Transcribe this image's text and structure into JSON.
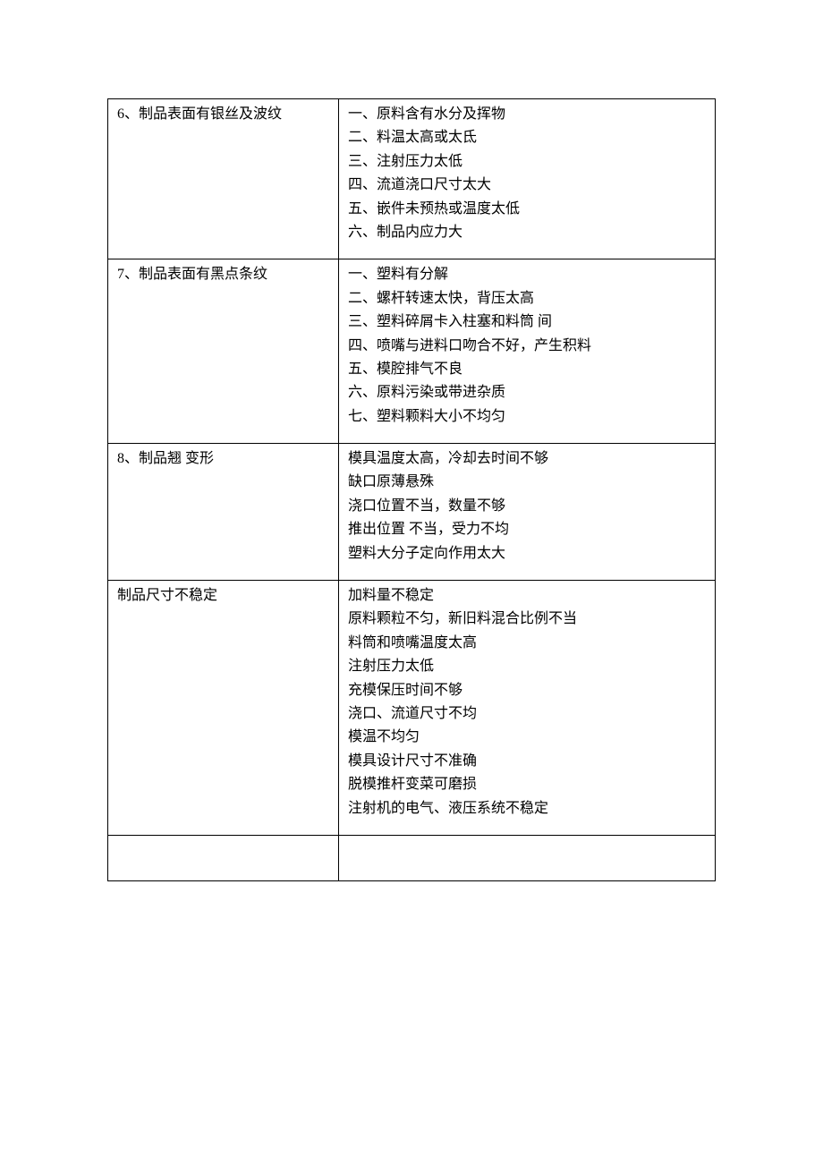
{
  "table": {
    "rows": [
      {
        "left": "6、制品表面有银丝及波纹",
        "right": "一、原料含有水分及挥物\n二、料温太高或太氐\n三、注射压力太低\n四、流道浇口尺寸太大\n五、嵌件未预热或温度太低\n六、制品内应力大"
      },
      {
        "left": "7、制品表面有黑点条纹",
        "right": "一、塑料有分解\n二、螺杆转速太快，背压太高\n三、塑料碎屑卡入柱塞和料筒  间\n四、喷嘴与进料口吻合不好，产生积料\n五、模腔排气不良\n六、原料污染或带进杂质\n七、塑料颗料大小不均匀"
      },
      {
        "left": "8、制品翘  变形",
        "right": "模具温度太高，冷却去时间不够\n缺口原薄悬殊\n浇口位置不当，数量不够\n推出位置  不当，受力不均\n塑料大分子定向作用太大"
      },
      {
        "left": "制品尺寸不稳定",
        "right": "加料量不稳定\n原料颗粒不匀，新旧料混合比例不当\n料筒和喷嘴温度太高\n注射压力太低\n充模保压时间不够\n浇口、流道尺寸不均\n模温不均匀\n模具设计尺寸不准确\n脱模推杆变菜可磨损\n注射机的电气、液压系统不稳定"
      }
    ]
  }
}
